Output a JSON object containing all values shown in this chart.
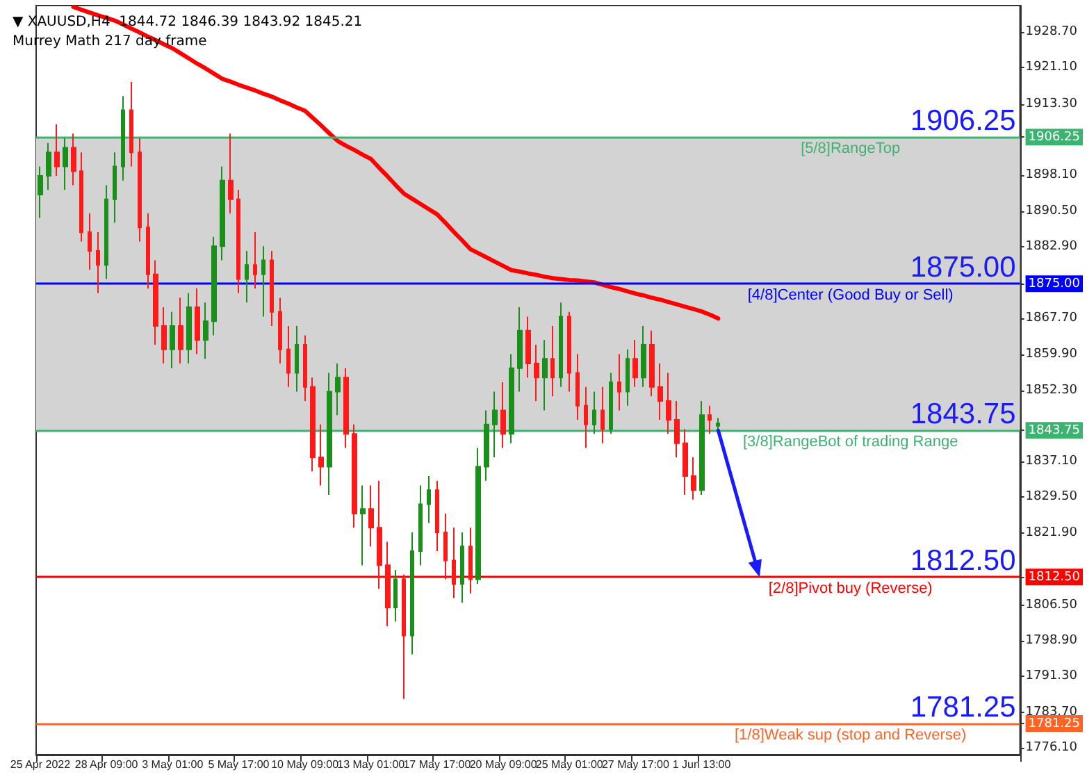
{
  "chart_data": {
    "type": "candlestick",
    "title": "▼ XAUUSD,H4  1844.72 1846.39 1843.92 1845.21",
    "subtitle": "Murrey Math 217 day frame",
    "categories": [
      "25 Apr 2022",
      null,
      null,
      null,
      null,
      null,
      null,
      null,
      "28 Apr 09:00",
      null,
      null,
      null,
      null,
      null,
      null,
      null,
      "3 May 01:00",
      null,
      null,
      null,
      null,
      null,
      null,
      null,
      "5 May 17:00",
      null,
      null,
      null,
      null,
      null,
      null,
      null,
      "10 May 09:00",
      null,
      null,
      null,
      null,
      null,
      null,
      null,
      "13 May 01:00",
      null,
      null,
      null,
      null,
      null,
      null,
      null,
      "17 May 17:00",
      null,
      null,
      null,
      null,
      null,
      null,
      null,
      "20 May 09:00",
      null,
      null,
      null,
      null,
      null,
      null,
      null,
      "25 May 01:00",
      null,
      null,
      null,
      null,
      null,
      null,
      null,
      "27 May 17:00",
      null,
      null,
      null,
      null,
      null,
      null,
      null,
      "1 Jun 13:00",
      null,
      null
    ],
    "ohlc": [
      [
        1894,
        1900,
        1889,
        1898
      ],
      [
        1898,
        1905,
        1895,
        1903
      ],
      [
        1903,
        1909,
        1898,
        1900
      ],
      [
        1900,
        1906,
        1895,
        1904
      ],
      [
        1904,
        1907,
        1896,
        1899
      ],
      [
        1899,
        1903,
        1884,
        1886
      ],
      [
        1886,
        1890,
        1878,
        1882
      ],
      [
        1882,
        1886,
        1873,
        1879
      ],
      [
        1879,
        1896,
        1876,
        1893
      ],
      [
        1893,
        1903,
        1888,
        1900
      ],
      [
        1900,
        1915,
        1897,
        1912
      ],
      [
        1912,
        1918,
        1900,
        1903
      ],
      [
        1903,
        1906,
        1884,
        1887
      ],
      [
        1887,
        1890,
        1874,
        1877
      ],
      [
        1877,
        1880,
        1862,
        1866
      ],
      [
        1866,
        1870,
        1858,
        1861
      ],
      [
        1861,
        1869,
        1857,
        1866
      ],
      [
        1866,
        1872,
        1858,
        1861
      ],
      [
        1861,
        1873,
        1858,
        1870
      ],
      [
        1870,
        1874,
        1860,
        1863
      ],
      [
        1863,
        1871,
        1859,
        1867
      ],
      [
        1867,
        1885,
        1864,
        1883
      ],
      [
        1883,
        1900,
        1880,
        1897
      ],
      [
        1897,
        1907,
        1890,
        1893
      ],
      [
        1893,
        1895,
        1873,
        1876
      ],
      [
        1876,
        1882,
        1871,
        1879
      ],
      [
        1879,
        1886,
        1874,
        1877
      ],
      [
        1877,
        1883,
        1868,
        1880
      ],
      [
        1880,
        1882,
        1866,
        1869
      ],
      [
        1869,
        1872,
        1858,
        1861
      ],
      [
        1861,
        1866,
        1853,
        1856
      ],
      [
        1856,
        1866,
        1852,
        1862
      ],
      [
        1862,
        1864,
        1850,
        1853
      ],
      [
        1853,
        1855,
        1835,
        1838
      ],
      [
        1838,
        1845,
        1832,
        1836
      ],
      [
        1836,
        1856,
        1830,
        1852
      ],
      [
        1852,
        1858,
        1847,
        1855
      ],
      [
        1855,
        1857,
        1840,
        1843
      ],
      [
        1843,
        1845,
        1823,
        1826
      ],
      [
        1826,
        1832,
        1815,
        1827
      ],
      [
        1827,
        1832,
        1819,
        1823
      ],
      [
        1823,
        1833,
        1810,
        1815
      ],
      [
        1815,
        1820,
        1802,
        1806
      ],
      [
        1806,
        1814,
        1803,
        1812
      ],
      [
        1812,
        1813,
        1786.5,
        1800
      ],
      [
        1800,
        1822,
        1796,
        1818
      ],
      [
        1818,
        1832,
        1815,
        1828
      ],
      [
        1828,
        1834,
        1824,
        1831
      ],
      [
        1831,
        1833,
        1818,
        1822
      ],
      [
        1822,
        1826,
        1812,
        1816
      ],
      [
        1816,
        1823,
        1808,
        1811
      ],
      [
        1811,
        1822,
        1807,
        1819
      ],
      [
        1819,
        1823,
        1809,
        1812
      ],
      [
        1812,
        1840,
        1811,
        1836
      ],
      [
        1836,
        1848,
        1833,
        1845
      ],
      [
        1845,
        1852,
        1838,
        1848
      ],
      [
        1848,
        1854,
        1840,
        1843
      ],
      [
        1843,
        1860,
        1841,
        1857
      ],
      [
        1857,
        1870,
        1852,
        1865
      ],
      [
        1865,
        1868,
        1855,
        1858
      ],
      [
        1858,
        1862,
        1850,
        1855
      ],
      [
        1855,
        1863,
        1848,
        1859
      ],
      [
        1859,
        1866,
        1851,
        1855
      ],
      [
        1855,
        1871,
        1853,
        1868
      ],
      [
        1868,
        1869,
        1852,
        1856
      ],
      [
        1856,
        1860,
        1846,
        1849
      ],
      [
        1849,
        1853,
        1840,
        1845
      ],
      [
        1845,
        1852,
        1843,
        1848
      ],
      [
        1848,
        1853,
        1841,
        1844
      ],
      [
        1844,
        1856,
        1843,
        1854
      ],
      [
        1854,
        1860,
        1848,
        1852
      ],
      [
        1852,
        1861,
        1849,
        1859
      ],
      [
        1859,
        1863,
        1853,
        1855
      ],
      [
        1855,
        1866,
        1853,
        1862
      ],
      [
        1862,
        1865,
        1851,
        1853
      ],
      [
        1853,
        1858,
        1846,
        1850
      ],
      [
        1850,
        1856,
        1843,
        1846
      ],
      [
        1846,
        1850,
        1838,
        1841
      ],
      [
        1841,
        1844,
        1830,
        1834
      ],
      [
        1834,
        1838,
        1829,
        1831
      ],
      [
        1831,
        1850,
        1830,
        1847
      ],
      [
        1847,
        1849,
        1843,
        1846
      ],
      [
        1844.72,
        1846.39,
        1843.92,
        1845.21
      ]
    ],
    "series": [
      {
        "type": "line",
        "color": "#ff0000",
        "values": [
          null,
          null,
          null,
          null,
          1934.0,
          1933.4,
          1932.8,
          1932.2,
          1931.7,
          1931.1,
          1930.3,
          1929.4,
          1928.6,
          1927.7,
          1926.9,
          1926.0,
          1925.2,
          1924.1,
          1923.0,
          1921.9,
          1920.9,
          1919.8,
          1918.7,
          1918.1,
          1917.4,
          1916.8,
          1916.2,
          1915.5,
          1914.9,
          1914.1,
          1913.4,
          1912.6,
          1911.9,
          1910.3,
          1908.7,
          1907.0,
          1905.4,
          1904.4,
          1903.5,
          1902.5,
          1901.6,
          1899.7,
          1897.9,
          1896.0,
          1894.2,
          1893.1,
          1892.0,
          1890.9,
          1889.8,
          1888.0,
          1886.1,
          1884.3,
          1882.4,
          1881.5,
          1880.6,
          1879.7,
          1878.8,
          1877.9,
          1877.6,
          1877.2,
          1876.9,
          1876.5,
          1876.2,
          1876.0,
          1875.8,
          1875.7,
          1875.5,
          1875.3,
          1874.8,
          1874.3,
          1873.9,
          1873.4,
          1872.9,
          1872.5,
          1872.0,
          1871.6,
          1871.1,
          1870.6,
          1870.1,
          1869.6,
          1869.1,
          1868.4,
          1867.6
        ]
      }
    ],
    "ylim": [
      1774.6,
      1934.3
    ],
    "yticks": [
      {
        "value": 1928.7,
        "label": "1928.70"
      },
      {
        "value": 1921.1,
        "label": "1921.10"
      },
      {
        "value": 1913.3,
        "label": "1913.30"
      },
      {
        "value": 1906.25,
        "label": "1906.25"
      },
      {
        "value": 1898.1,
        "label": "1898.10"
      },
      {
        "value": 1890.5,
        "label": "1890.50"
      },
      {
        "value": 1882.9,
        "label": "1882.90"
      },
      {
        "value": 1875,
        "label": "1875.00"
      },
      {
        "value": 1867.7,
        "label": "1867.70"
      },
      {
        "value": 1859.9,
        "label": "1859.90"
      },
      {
        "value": 1852.3,
        "label": "1852.30"
      },
      {
        "value": 1843.75,
        "label": "1843.75"
      },
      {
        "value": 1837.1,
        "label": "1837.10"
      },
      {
        "value": 1829.5,
        "label": "1829.50"
      },
      {
        "value": 1821.9,
        "label": "1821.90"
      },
      {
        "value": 1812.5,
        "label": "1812.50"
      },
      {
        "value": 1806.5,
        "label": "1806.50"
      },
      {
        "value": 1798.9,
        "label": "1798.90"
      },
      {
        "value": 1791.3,
        "label": "1791.30"
      },
      {
        "value": 1783.7,
        "label": "1783.70"
      },
      {
        "value": 1781.25,
        "label": "1781.25"
      },
      {
        "value": 1776.1,
        "label": "1776.10"
      }
    ],
    "ref_lines": [
      {
        "axis": "y",
        "value": 1906.25,
        "label": "[5/8]RangeTop",
        "color": "#3cb371"
      },
      {
        "axis": "y",
        "value": 1875,
        "label": "[4/8]Center (Good Buy or Sell)",
        "color": "#0000ff"
      },
      {
        "axis": "y",
        "value": 1843.75,
        "label": "[3/8]RangeBot of trading Range",
        "color": "#3cb371"
      },
      {
        "axis": "y",
        "value": 1812.5,
        "label": "[2/8]Pivot buy (Reverse)",
        "color": "#ff0000"
      },
      {
        "axis": "y",
        "value": 1781.25,
        "label": "[1/8]Weak sup (stop and Reverse)",
        "color": "#ff6424"
      }
    ],
    "bands": [
      {
        "axis": "y",
        "from": 1843.75,
        "to": 1906.25,
        "color": "#d3d3d3"
      }
    ],
    "annotations": [
      {
        "text": "1906.25",
        "y": 1906.25
      },
      {
        "text": "1875.00",
        "y": 1875
      },
      {
        "text": "1843.75",
        "y": 1843.75
      },
      {
        "text": "1812.50",
        "y": 1812.5
      },
      {
        "text": "1781.25",
        "y": 1781.25
      }
    ],
    "grid": false
  }
}
